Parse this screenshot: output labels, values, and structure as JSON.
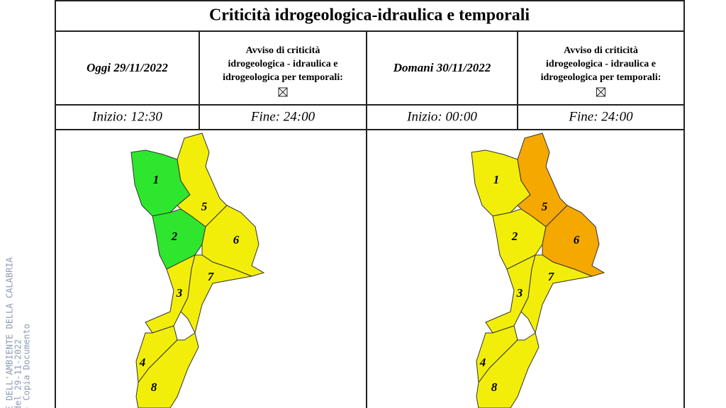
{
  "header": {
    "title": "Criticità idrogeologica-idraulica e temporali"
  },
  "watermark": [
    "E DELL'AMBIENTE DELLA CALABRIA",
    "del 29-11-2022",
    "- Copia Documento"
  ],
  "days": [
    {
      "date": "Oggi 29/11/2022",
      "notice": [
        "Avviso di criticità",
        "idrogeologica - idraulica e",
        "idrogeologica per temporali:"
      ],
      "start": "Inizio: 12:30",
      "end": "Fine: 24:00",
      "zones": [
        "1",
        "2",
        "3",
        "4",
        "5",
        "6",
        "7",
        "8"
      ]
    },
    {
      "date": "Domani 30/11/2022",
      "notice": [
        "Avviso di criticità",
        "idrogeologica - idraulica e",
        "idrogeologica per temporali:"
      ],
      "start": "Inizio: 00:00",
      "end": "Fine: 24:00",
      "zones": [
        "1",
        "2",
        "3",
        "4",
        "5",
        "6",
        "7",
        "8"
      ]
    }
  ]
}
